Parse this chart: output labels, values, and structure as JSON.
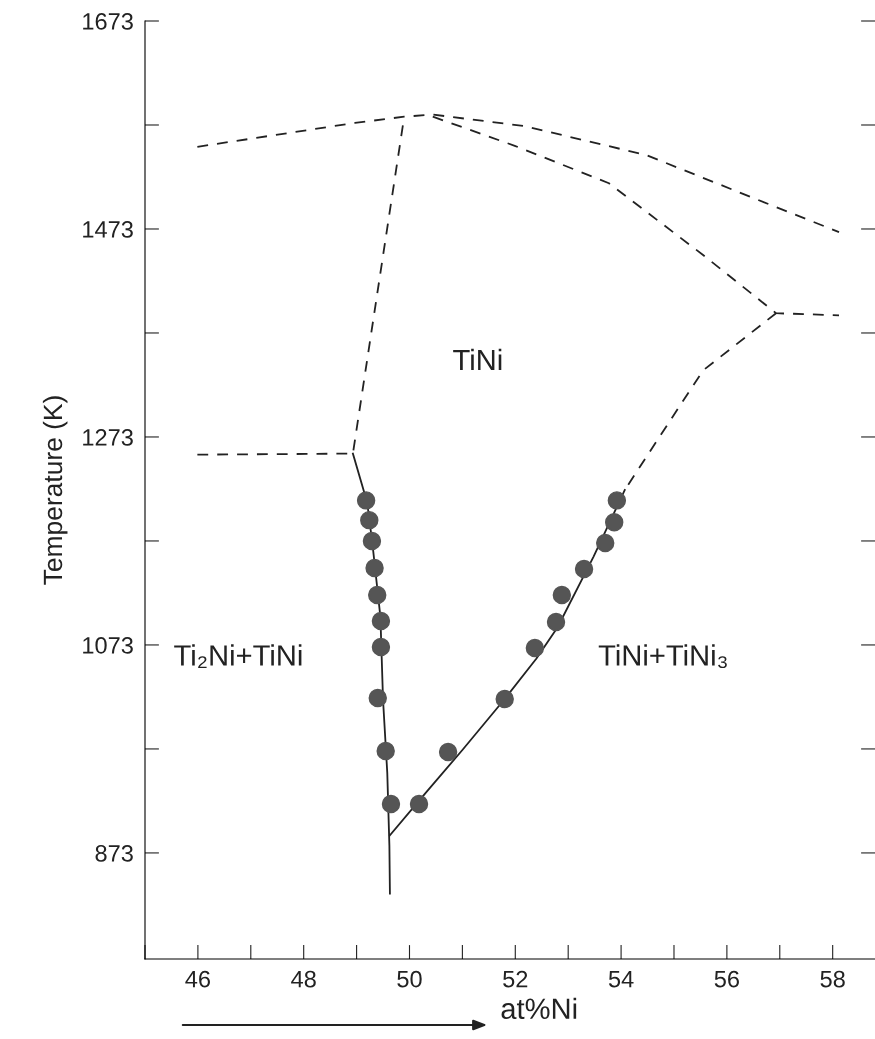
{
  "chart_data": {
    "type": "line",
    "xlabel": "at%Ni",
    "ylabel": "Temperature (K)",
    "xlim": [
      45,
      58.8
    ],
    "ylim": [
      771,
      1673
    ],
    "xticks": [
      {
        "value": 45,
        "label": null
      },
      46,
      {
        "value": 47,
        "label": null
      },
      48,
      {
        "value": 49,
        "label": null
      },
      50,
      {
        "value": 51,
        "label": null
      },
      52,
      {
        "value": 53,
        "label": null
      },
      54,
      {
        "value": 55,
        "label": null
      },
      56,
      {
        "value": 57,
        "label": null
      },
      58
    ],
    "yticks": [
      873,
      {
        "value": 973,
        "label": null
      },
      1073,
      {
        "value": 1173,
        "label": null
      },
      1273,
      {
        "value": 1373,
        "label": null
      },
      1473,
      {
        "value": 1573,
        "label": null
      },
      1673
    ],
    "grid": false,
    "series": [
      {
        "line_style": "dashed",
        "color": "#222222",
        "x": [
          45.99,
          48.97,
          49.9,
          50.44,
          52.17,
          54.48,
          56.44,
          58.12
        ],
        "values": [
          1552,
          1575,
          1581,
          1583,
          1572,
          1544,
          1504,
          1470
        ]
      },
      {
        "line_style": "dashed",
        "color": "#222222",
        "x": [
          50.44,
          51.99,
          53.77,
          55.55,
          56.93,
          58.12
        ],
        "values": [
          1581,
          1553,
          1517,
          1448,
          1392,
          1390
        ]
      },
      {
        "line_style": "dashed",
        "color": "#222222",
        "x": [
          56.93,
          55.55,
          54.48,
          54.07
        ],
        "values": [
          1392,
          1337,
          1254,
          1222
        ]
      },
      {
        "line_style": "dashed",
        "color": "#222222",
        "x": [
          45.99,
          48.93,
          49.9
        ],
        "values": [
          1256,
          1257,
          1581
        ]
      },
      {
        "line_style": "solid",
        "color": "#222222",
        "x": [
          48.93,
          49.2,
          49.3,
          49.45,
          49.5,
          49.58,
          49.62,
          49.63
        ],
        "values": [
          1257,
          1210,
          1170,
          1100,
          1020,
          950,
          880,
          834
        ]
      },
      {
        "line_style": "solid",
        "color": "#222222",
        "x": [
          49.63,
          50.31,
          51.0,
          51.8,
          52.4,
          52.8,
          53.48,
          54.07
        ],
        "values": [
          890,
          931,
          972,
          1021,
          1060,
          1090,
          1158,
          1222
        ]
      },
      {
        "type": "scatter",
        "marker": "circle",
        "color": "#555555",
        "x": [
          49.18,
          49.24,
          49.29,
          49.34,
          49.39,
          49.46,
          49.46,
          49.4,
          49.55,
          49.65
        ],
        "values": [
          1212,
          1193,
          1173,
          1147,
          1121,
          1096,
          1071,
          1022,
          971,
          920
        ]
      },
      {
        "type": "scatter",
        "marker": "circle",
        "color": "#555555",
        "x": [
          50.18,
          50.73,
          51.8,
          52.37,
          52.77,
          52.88,
          53.3,
          53.7,
          53.87,
          53.92
        ],
        "values": [
          920,
          970,
          1021,
          1070,
          1095,
          1121,
          1146,
          1171,
          1191,
          1212
        ]
      }
    ],
    "annotations": [
      "TiNi",
      "Ti₂Ni+TiNi",
      "TiNi+TiNi₃"
    ]
  }
}
